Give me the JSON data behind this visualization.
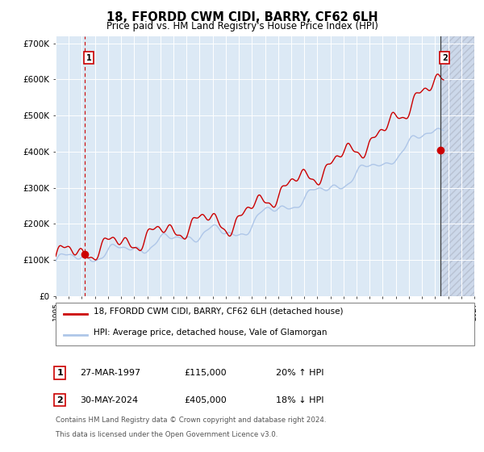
{
  "title": "18, FFORDD CWM CIDI, BARRY, CF62 6LH",
  "subtitle": "Price paid vs. HM Land Registry's House Price Index (HPI)",
  "legend_line1": "18, FFORDD CWM CIDI, BARRY, CF62 6LH (detached house)",
  "legend_line2": "HPI: Average price, detached house, Vale of Glamorgan",
  "annotation1_label": "1",
  "annotation1_date": "27-MAR-1997",
  "annotation1_price": "£115,000",
  "annotation1_hpi": "20% ↑ HPI",
  "annotation2_label": "2",
  "annotation2_date": "30-MAY-2024",
  "annotation2_price": "£405,000",
  "annotation2_hpi": "18% ↓ HPI",
  "footnote1": "Contains HM Land Registry data © Crown copyright and database right 2024.",
  "footnote2": "This data is licensed under the Open Government Licence v3.0.",
  "sale1_year": 1997.23,
  "sale1_price": 115000,
  "sale2_year": 2024.42,
  "sale2_price": 405000,
  "hpi_color": "#aec6e8",
  "red_color": "#cc0000",
  "marker_color": "#cc0000",
  "background_plot": "#dce9f5",
  "background_future": "#ccd8ea",
  "grid_color": "#ffffff",
  "ylim": [
    0,
    720000
  ],
  "xlim_start": 1995,
  "xlim_end": 2027,
  "future_start": 2024.5
}
